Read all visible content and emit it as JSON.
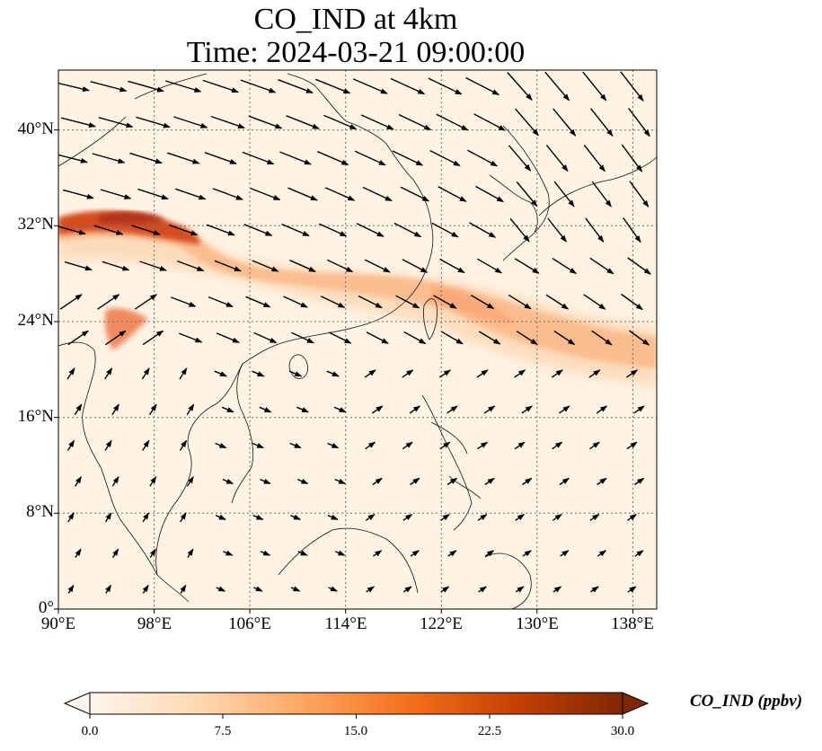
{
  "title": {
    "line1": "CO_IND at 4km",
    "line2": "Time: 2024-03-21 09:00:00"
  },
  "map": {
    "lon_range": [
      90,
      140
    ],
    "lat_range": [
      0,
      45
    ],
    "lat_ticks": [
      "0°",
      "8°N",
      "16°N",
      "24°N",
      "32°N",
      "40°N"
    ],
    "lon_ticks": [
      "90°E",
      "98°E",
      "106°E",
      "114°E",
      "122°E",
      "130°E",
      "138°E"
    ],
    "gridlines": true,
    "vectors": "wind"
  },
  "colorbar": {
    "label": "CO_IND (ppbv)",
    "ticks": [
      "0.0",
      "7.5",
      "15.0",
      "22.5",
      "30.0"
    ],
    "min": 0,
    "max": 30,
    "extend": "both",
    "colormap": [
      "#fff5eb",
      "#fdd9b4",
      "#fda762",
      "#f3701b",
      "#c54102",
      "#7f2704"
    ]
  }
}
